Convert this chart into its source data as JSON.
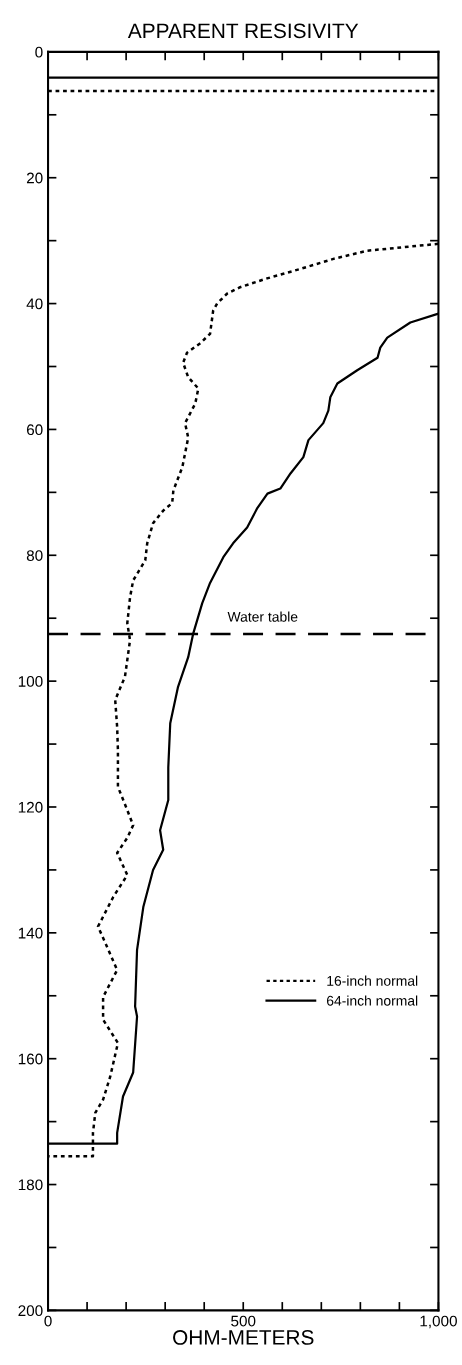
{
  "chart_data": {
    "type": "line",
    "title": "APPARENT RESISIVITY",
    "xlabel": "OHM-METERS",
    "xlim": [
      0,
      1000
    ],
    "ylim": [
      200,
      0
    ],
    "xticks": [
      0,
      {
        "value": 100,
        "label": null
      },
      {
        "value": 200,
        "label": null
      },
      {
        "value": 300,
        "label": null
      },
      {
        "value": 400,
        "label": null
      },
      500,
      {
        "value": 600,
        "label": null
      },
      {
        "value": 700,
        "label": null
      },
      {
        "value": 800,
        "label": null
      },
      {
        "value": 900,
        "label": null
      },
      {
        "value": 1000,
        "label": "1,000"
      }
    ],
    "yticks": [
      0,
      {
        "value": 10,
        "label": null
      },
      20,
      {
        "value": 30,
        "label": null
      },
      40,
      {
        "value": 50,
        "label": null
      },
      60,
      {
        "value": 70,
        "label": null
      },
      80,
      {
        "value": 90,
        "label": null
      },
      100,
      {
        "value": 110,
        "label": null
      },
      120,
      {
        "value": 130,
        "label": null
      },
      140,
      {
        "value": 150,
        "label": null
      },
      160,
      {
        "value": 170,
        "label": null
      },
      180,
      {
        "value": 190,
        "label": null
      },
      200
    ],
    "grid": false,
    "legend": "lower right",
    "series": [
      {
        "name": "16-inch normal",
        "color": "#000000",
        "line_style": "dotted",
        "x": [
          0,
          1000,
          null,
          1000,
          818,
          731,
          646,
          561,
          492,
          459,
          433,
          423,
          415,
          390,
          356,
          346,
          359,
          385,
          377,
          351,
          359,
          344,
          321,
          318,
          295,
          269,
          254,
          249,
          218,
          210,
          203,
          210,
          197,
          172,
          177,
          179,
          179,
          203,
          218,
          203,
          177,
          203,
          167,
          128,
          151,
          177,
          141,
          141,
          179,
          159,
          141,
          121,
          115,
          115,
          0
        ],
        "values": [
          6.2,
          6.2,
          null,
          30.5,
          31.6,
          32.9,
          34.5,
          36.0,
          37.4,
          38.4,
          40.0,
          41.1,
          44.8,
          46.3,
          47.8,
          49.4,
          51.7,
          53.5,
          55.9,
          59.0,
          61.3,
          66.0,
          69.7,
          71.7,
          72.9,
          74.9,
          78.1,
          80.8,
          84.0,
          86.7,
          90.8,
          93.5,
          99.3,
          103.0,
          107.3,
          111.0,
          116.8,
          120.5,
          122.9,
          124.9,
          127.3,
          130.8,
          134.3,
          139.0,
          142.2,
          145.9,
          150.2,
          153.8,
          157.5,
          162.9,
          166.5,
          168.6,
          171.8,
          175.5,
          175.5
        ]
      },
      {
        "name": "64-inch normal",
        "color": "#000000",
        "line_style": "solid",
        "x": [
          0,
          1000,
          null,
          1000,
          928,
          869,
          851,
          844,
          792,
          741,
          723,
          718,
          705,
          667,
          654,
          621,
          595,
          562,
          536,
          510,
          474,
          449,
          415,
          395,
          372,
          359,
          333,
          313,
          308,
          308,
          287,
          295,
          269,
          244,
          228,
          223,
          228,
          218,
          192,
          177,
          177,
          0
        ],
        "values": [
          4.1,
          4.1,
          null,
          41.6,
          43.0,
          45.4,
          47.0,
          48.6,
          50.6,
          52.7,
          54.9,
          57.0,
          59.0,
          61.7,
          64.4,
          67.0,
          69.4,
          70.2,
          72.5,
          75.6,
          78.1,
          80.3,
          84.4,
          87.6,
          92.4,
          96.2,
          100.9,
          106.7,
          113.7,
          118.9,
          123.7,
          126.8,
          130.0,
          135.9,
          142.7,
          151.7,
          153.3,
          162.2,
          166.0,
          171.8,
          173.5,
          173.5
        ]
      }
    ],
    "ref_lines": [
      {
        "axis": "y",
        "value": 92.5,
        "label": "Water table",
        "color": "#000000",
        "line_style": "dashed"
      }
    ]
  }
}
